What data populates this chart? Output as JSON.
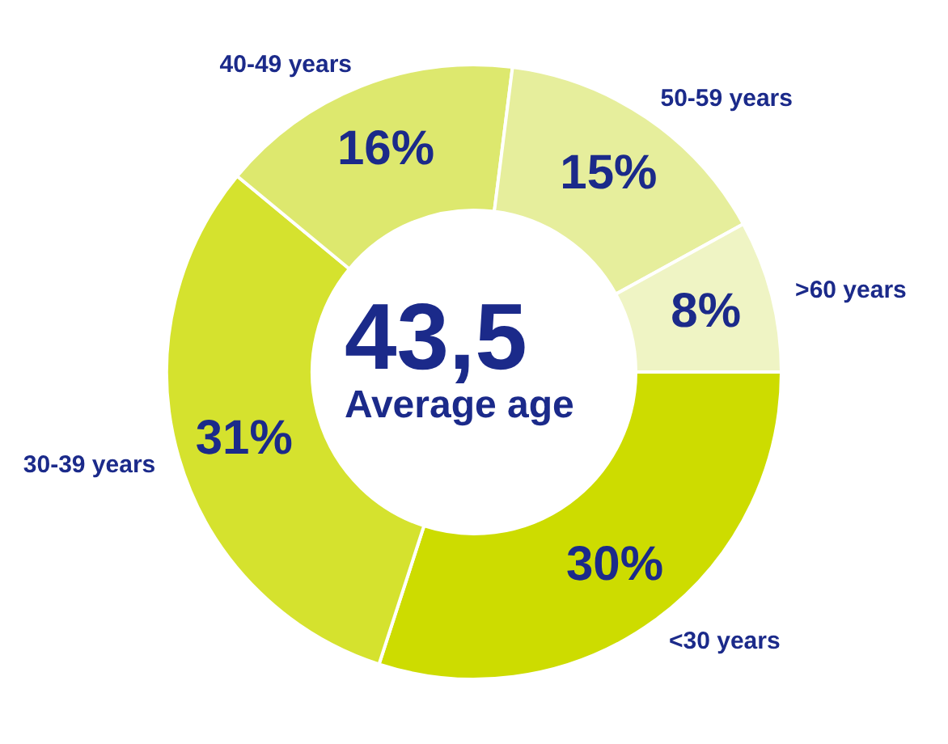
{
  "chart_data": {
    "type": "donut",
    "categories": [
      "<30 years",
      "30-39 years",
      "40-49 years",
      "50-59 years",
      ">60 years"
    ],
    "values": [
      30,
      31,
      16,
      15,
      8
    ],
    "colors": [
      "#cddc00",
      "#d5e22e",
      "#dde86e",
      "#e6ee9c",
      "#eff4c4"
    ],
    "value_labels": [
      "30%",
      "31%",
      "16%",
      "15%",
      "8%"
    ],
    "annotations": [
      "43,5",
      "Average age"
    ]
  }
}
